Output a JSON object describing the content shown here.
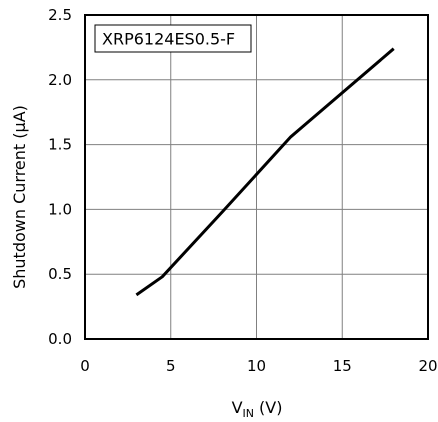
{
  "chart_data": {
    "type": "line",
    "legend_label": "XRP6124ES0.5-F",
    "legend_placement": "top-left",
    "xlabel": {
      "main": "V",
      "subscript": "IN",
      "unit": "(V)"
    },
    "ylabel": "Shutdown Current (µA)",
    "xlim": [
      0,
      20
    ],
    "ylim": [
      0,
      2.5
    ],
    "x_ticks": [
      0,
      5,
      10,
      15,
      20
    ],
    "x_tick_labels": [
      "0",
      "5",
      "10",
      "15",
      "20"
    ],
    "y_ticks": [
      0,
      0.5,
      1.0,
      1.5,
      2.0,
      2.5
    ],
    "y_tick_labels": [
      "0.0",
      "0.5",
      "1.0",
      "1.5",
      "2.0",
      "2.5"
    ],
    "grid": true,
    "series": [
      {
        "color": "#000000",
        "x": [
          3.0,
          4.5,
          8.0,
          12.0,
          18.0
        ],
        "y": [
          0.34,
          0.48,
          0.98,
          1.56,
          2.24
        ]
      }
    ]
  }
}
